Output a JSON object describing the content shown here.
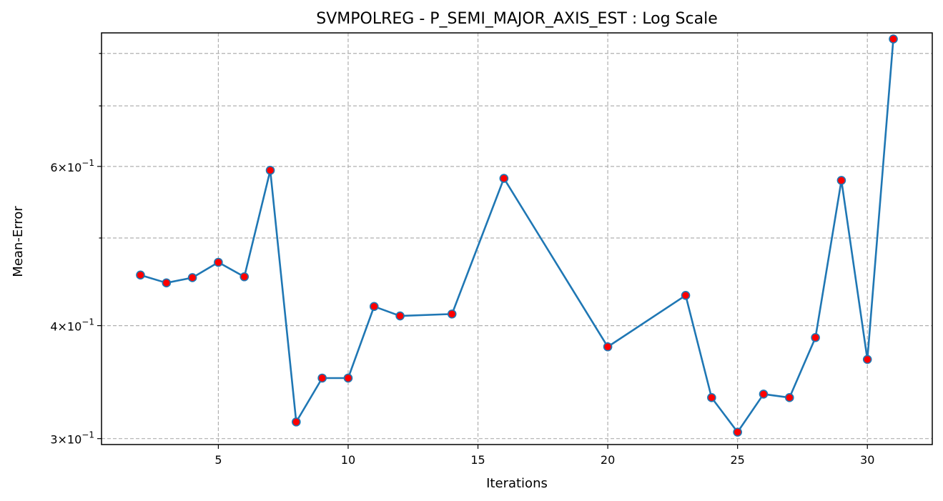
{
  "chart_data": {
    "type": "line",
    "title": "SVMPOLREG - P_SEMI_MAJOR_AXIS_EST : Log Scale",
    "xlabel": "Iterations",
    "ylabel": "Mean-Error",
    "yscale": "log",
    "xlim": [
      0.5,
      32.5
    ],
    "ylim": [
      0.2955,
      0.843
    ],
    "grid": true,
    "x_ticks": [
      5,
      10,
      15,
      20,
      25,
      30
    ],
    "x_tick_labels": [
      "5",
      "10",
      "15",
      "20",
      "25",
      "30"
    ],
    "y_major_ticks": [
      {
        "value": 0.3,
        "base": "3",
        "exp": "−1"
      },
      {
        "value": 0.4,
        "base": "4",
        "exp": "−1"
      },
      {
        "value": 0.6,
        "base": "6",
        "exp": "−1"
      }
    ],
    "y_minor_ticks": [
      0.5,
      0.7,
      0.8
    ],
    "line_color": "#1f77b4",
    "marker_color": "#ff0000",
    "marker_edge_color": "#1f77b4",
    "series": [
      {
        "x": [
          2,
          3,
          4,
          5,
          6,
          7,
          8,
          9,
          10,
          11,
          12,
          14,
          16,
          20,
          23,
          24,
          25,
          26,
          27,
          28,
          29,
          30,
          31
        ],
        "y": [
          0.455,
          0.446,
          0.452,
          0.47,
          0.453,
          0.594,
          0.313,
          0.35,
          0.35,
          0.42,
          0.41,
          0.412,
          0.582,
          0.379,
          0.432,
          0.333,
          0.305,
          0.336,
          0.333,
          0.388,
          0.579,
          0.367,
          0.83
        ]
      }
    ]
  }
}
